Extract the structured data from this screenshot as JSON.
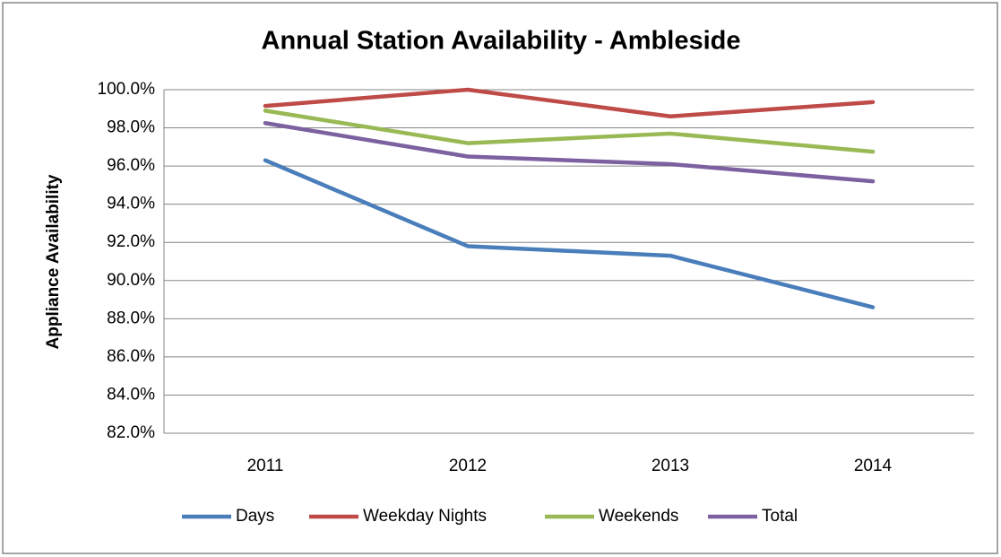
{
  "chart_data": {
    "type": "line",
    "title": "Annual Station Availability - Ambleside",
    "y_label": "Appliance Availability",
    "categories": [
      "2011",
      "2012",
      "2013",
      "2014"
    ],
    "series": [
      {
        "name": "Days",
        "color": "#4a7ebb",
        "values": [
          96.3,
          91.8,
          91.3,
          88.6
        ]
      },
      {
        "name": "Weekday Nights",
        "color": "#be4b48",
        "values": [
          99.15,
          100,
          98.6,
          99.35
        ]
      },
      {
        "name": "Weekends",
        "color": "#98b954",
        "values": [
          98.9,
          97.2,
          97.7,
          96.75
        ]
      },
      {
        "name": "Total",
        "color": "#7d60a0",
        "values": [
          98.25,
          96.5,
          96.1,
          95.2
        ]
      }
    ],
    "ylim": [
      82,
      100
    ],
    "yticks": [
      {
        "value": 82,
        "label": "82.0%"
      },
      {
        "value": 84,
        "label": "84.0%"
      },
      {
        "value": 86,
        "label": "86.0%"
      },
      {
        "value": 88,
        "label": "88.0%"
      },
      {
        "value": 90,
        "label": "90.0%"
      },
      {
        "value": 92,
        "label": "92.0%"
      },
      {
        "value": 94,
        "label": "94.0%"
      },
      {
        "value": 96,
        "label": "96.0%"
      },
      {
        "value": 98,
        "label": "98.0%"
      },
      {
        "value": 100,
        "label": "100.0%"
      }
    ],
    "grid": true,
    "legend": "bottom"
  }
}
